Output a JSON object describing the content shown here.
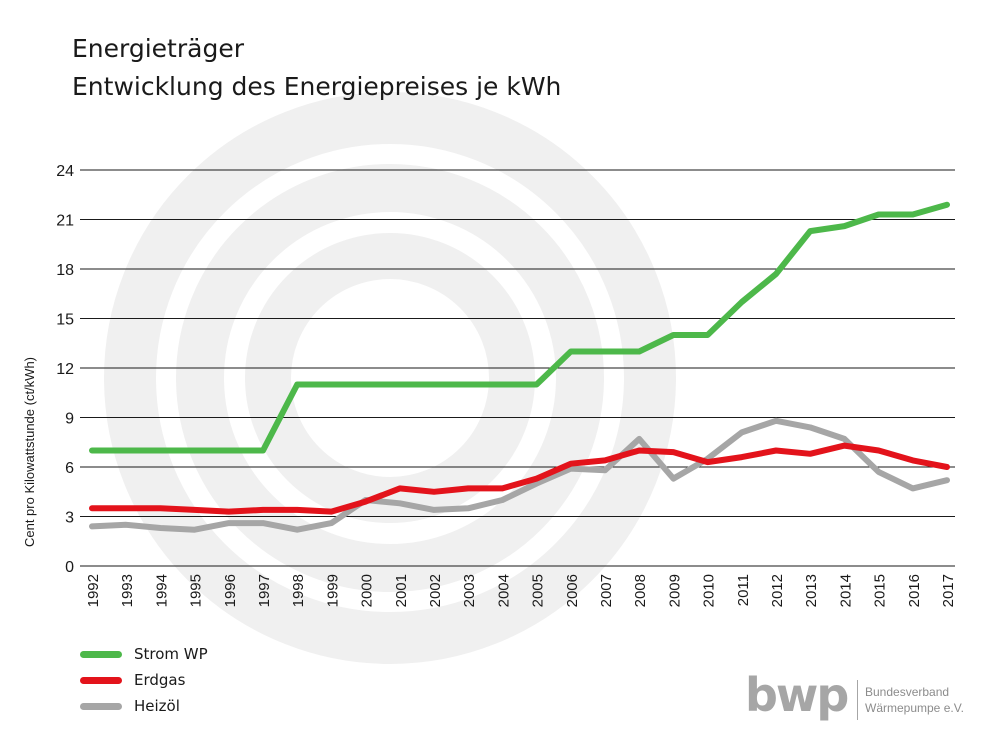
{
  "title_line1": "Energieträger",
  "title_line2": "Entwicklung des Energiepreises je kWh",
  "logo": {
    "mark": "bwp",
    "line1": "Bundesverband",
    "line2": "Wärmepumpe e.V."
  },
  "chart_data": {
    "type": "line",
    "ylabel": "Cent pro Kilowattstunde (ct/kWh)",
    "xlabel": "",
    "ylim": [
      0,
      24
    ],
    "yticks": [
      0,
      3,
      6,
      9,
      12,
      15,
      18,
      21,
      24
    ],
    "grid": true,
    "legend_position": "bottom-left",
    "categories": [
      "1992",
      "1993",
      "1994",
      "1995",
      "1996",
      "1997",
      "1998",
      "1999",
      "2000",
      "2001",
      "2002",
      "2003",
      "2004",
      "2005",
      "2006",
      "2007",
      "2008",
      "2009",
      "2010",
      "2011",
      "2012",
      "2013",
      "2014",
      "2015",
      "2016",
      "2017"
    ],
    "series": [
      {
        "name": "Strom WP",
        "color": "#4db84a",
        "values": [
          7,
          7,
          7,
          7,
          7,
          7,
          11,
          11,
          11,
          11,
          11,
          11,
          11,
          11,
          13,
          13,
          13,
          14,
          14,
          16,
          17.7,
          20.3,
          20.6,
          21.3,
          21.3,
          21.9
        ]
      },
      {
        "name": "Erdgas",
        "color": "#e3131b",
        "values": [
          3.5,
          3.5,
          3.5,
          3.4,
          3.3,
          3.4,
          3.4,
          3.3,
          3.9,
          4.7,
          4.5,
          4.7,
          4.7,
          5.3,
          6.2,
          6.4,
          7.0,
          6.9,
          6.3,
          6.6,
          7.0,
          6.8,
          7.3,
          7.0,
          6.4,
          6.0
        ]
      },
      {
        "name": "Heizöl",
        "color": "#a6a6a6",
        "values": [
          2.4,
          2.5,
          2.3,
          2.2,
          2.6,
          2.6,
          2.2,
          2.6,
          4.0,
          3.8,
          3.4,
          3.5,
          4.0,
          5.0,
          5.9,
          5.8,
          7.7,
          5.3,
          6.5,
          8.1,
          8.8,
          8.4,
          7.7,
          5.7,
          4.7,
          5.2
        ]
      }
    ]
  }
}
